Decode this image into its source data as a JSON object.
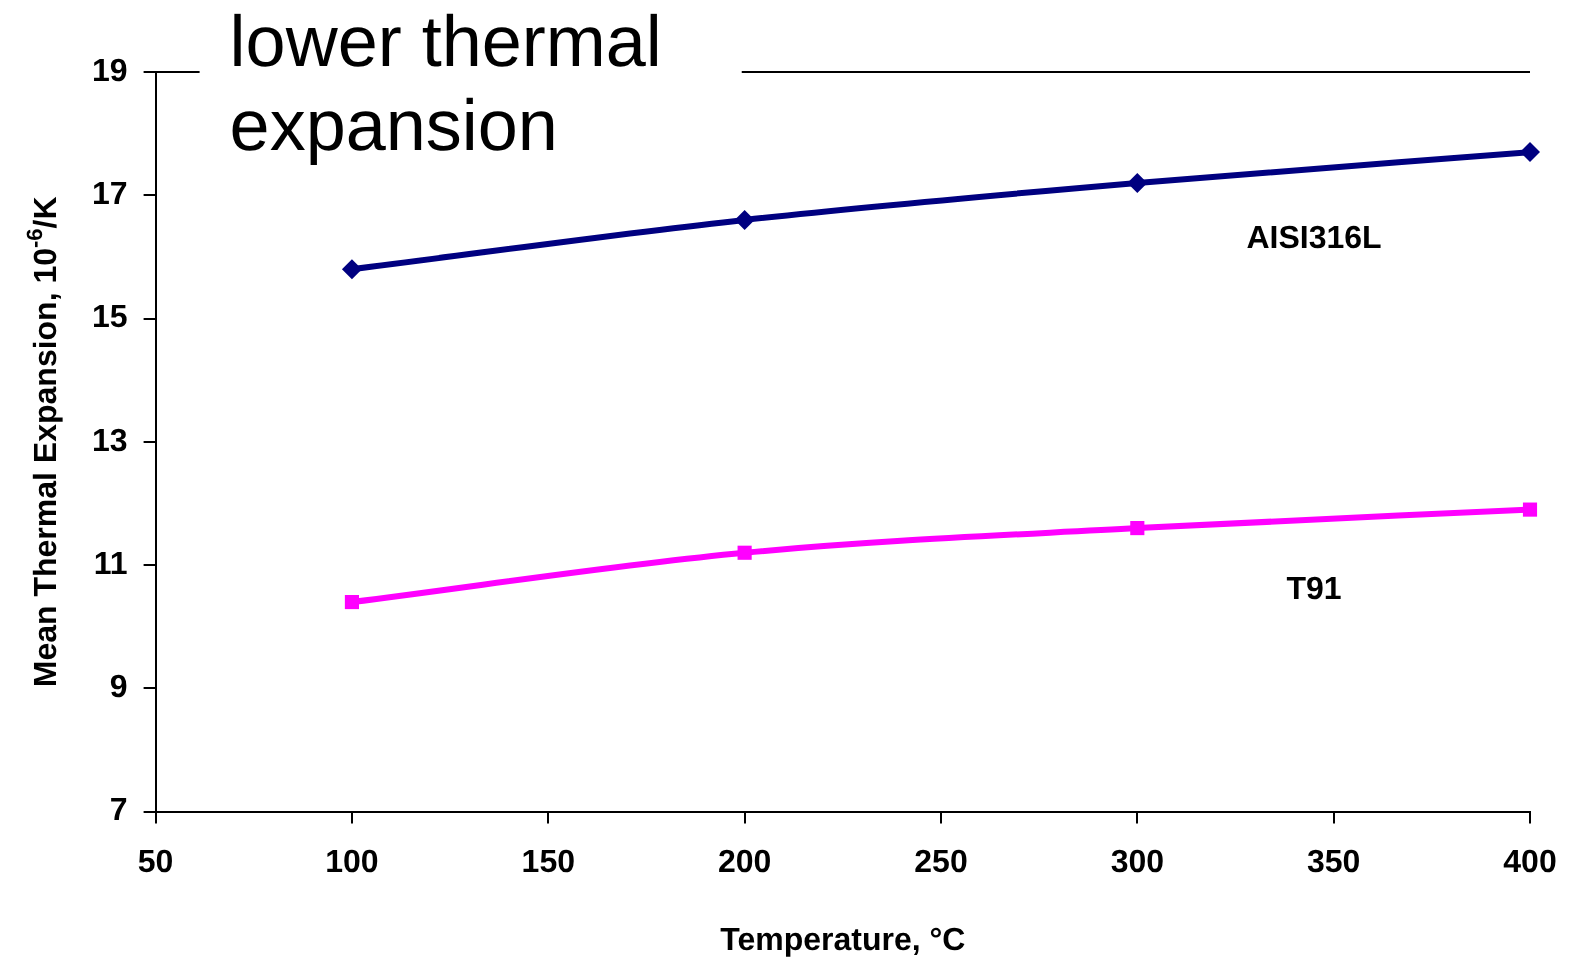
{
  "chart_data": {
    "type": "line",
    "title": "lower thermal expansion",
    "xlabel": "Temperature, °C",
    "ylabel": "Mean Thermal Expansion, 10$^{-6}$/K",
    "x": [
      100,
      200,
      300,
      400
    ],
    "series": [
      {
        "name": "AISI316L",
        "color": "#000080",
        "marker": "diamond",
        "values": [
          15.8,
          16.6,
          17.2,
          17.7
        ]
      },
      {
        "name": "T91",
        "color": "#ff00ff",
        "marker": "square",
        "values": [
          10.4,
          11.2,
          11.6,
          11.9
        ]
      }
    ],
    "xlim": [
      50,
      400
    ],
    "xticks": [
      50,
      100,
      150,
      200,
      250,
      300,
      350,
      400
    ],
    "ylim": [
      7,
      19
    ],
    "yticks": [
      7,
      9,
      11,
      13,
      15,
      17,
      19
    ],
    "grid": false,
    "legend": false
  }
}
